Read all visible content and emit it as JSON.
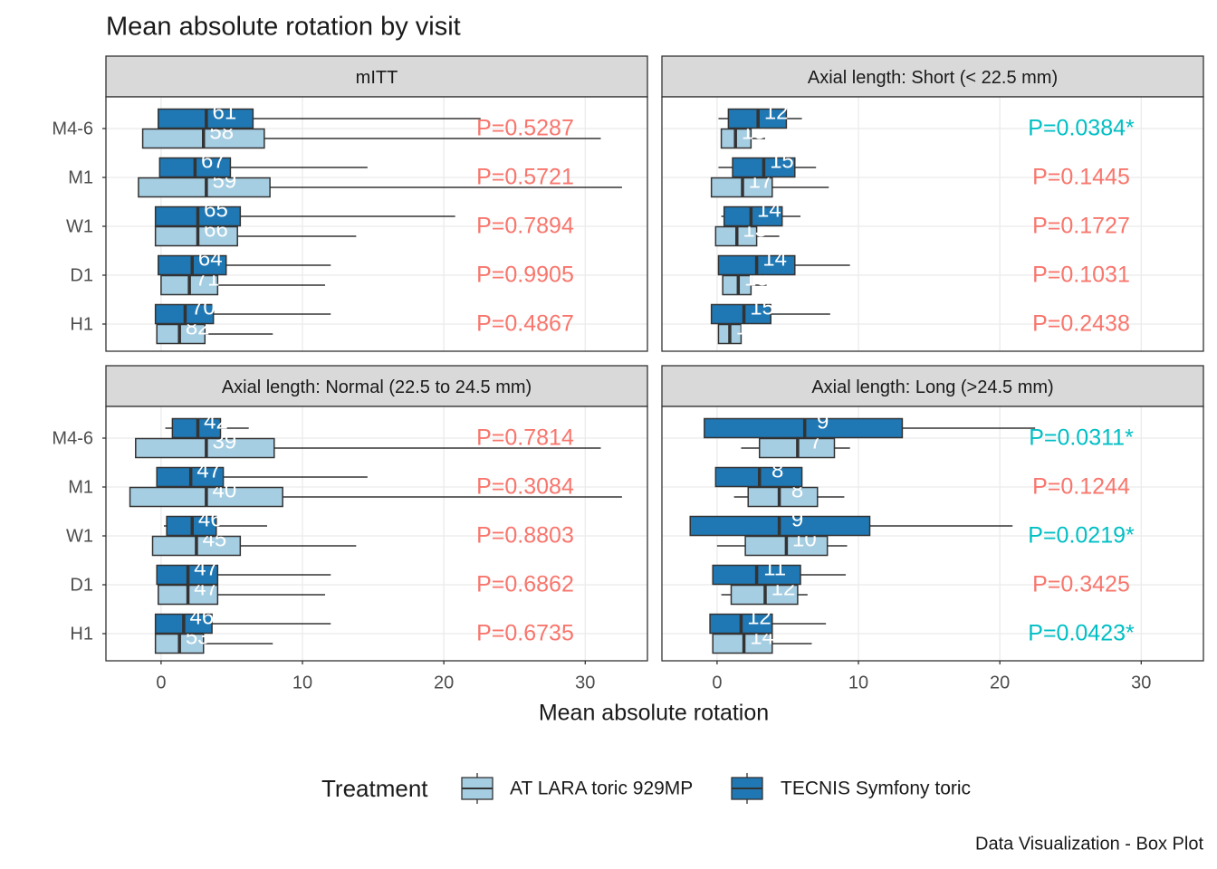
{
  "chart_data": {
    "type": "box",
    "title": "Mean absolute rotation by visit",
    "x_label": "Mean absolute rotation",
    "legend_title": "Treatment",
    "caption": "Data Visualization - Box Plot",
    "xlim": [
      -3.9,
      34.4
    ],
    "xticks": [
      0,
      10,
      20,
      30
    ],
    "grid": true,
    "categories": [
      "M4-6",
      "M1",
      "W1",
      "D1",
      "H1"
    ],
    "series": [
      {
        "name": "AT LARA toric 929MP",
        "color": "#a6cee3"
      },
      {
        "name": "TECNIS Symfony toric",
        "color": "#1f78b4"
      }
    ],
    "panels": [
      {
        "title": "mITT",
        "series": [
          {
            "stats": [
              [
                -1.3,
                -1.3,
                3.0,
                7.3,
                31.1
              ],
              [
                -1.6,
                -1.6,
                3.2,
                7.7,
                32.6
              ],
              [
                -0.4,
                -0.4,
                2.6,
                5.4,
                13.8
              ],
              [
                0,
                0,
                2.0,
                4.0,
                11.6
              ],
              [
                -0.3,
                -0.3,
                1.3,
                3.1,
                7.9
              ]
            ],
            "counts": [
              58,
              59,
              66,
              71,
              82
            ]
          },
          {
            "stats": [
              [
                -0.2,
                -0.2,
                3.2,
                6.5,
                22.6
              ],
              [
                -0.1,
                -0.1,
                2.4,
                4.9,
                14.6
              ],
              [
                -0.4,
                -0.4,
                2.6,
                5.6,
                20.8
              ],
              [
                -0.2,
                -0.2,
                2.2,
                4.6,
                12.0
              ],
              [
                -0.4,
                -0.4,
                1.7,
                3.7,
                12.0
              ]
            ],
            "counts": [
              61,
              67,
              65,
              64,
              70
            ]
          }
        ],
        "p_values": [
          "P=0.5287",
          "P=0.5721",
          "P=0.7894",
          "P=0.9905",
          "P=0.4867"
        ],
        "p_colors": [
          "#F8766D",
          "#F8766D",
          "#F8766D",
          "#F8766D",
          "#F8766D"
        ]
      },
      {
        "title": "Axial length: Short (< 22.5 mm)",
        "series": [
          {
            "stats": [
              [
                0.3,
                0.3,
                1.3,
                2.4,
                3.4
              ],
              [
                -0.4,
                -0.4,
                1.8,
                3.9,
                7.9
              ],
              [
                -0.1,
                -0.1,
                1.4,
                2.8,
                4.4
              ],
              [
                0.4,
                0.4,
                1.5,
                2.4,
                3.5
              ],
              [
                0.1,
                0.1,
                0.9,
                1.7,
                1.7
              ]
            ],
            "counts": [
              13,
              17,
              13,
              13,
              15
            ]
          },
          {
            "stats": [
              [
                0.1,
                0.8,
                2.9,
                4.9,
                6.0
              ],
              [
                0.1,
                1.1,
                3.3,
                5.5,
                7.0
              ],
              [
                0.3,
                0.5,
                2.4,
                4.6,
                5.9
              ],
              [
                0.1,
                0.1,
                2.8,
                5.5,
                9.4
              ],
              [
                -0.4,
                -0.4,
                1.9,
                3.8,
                8.0
              ]
            ],
            "counts": [
              12,
              15,
              14,
              14,
              15
            ]
          }
        ],
        "p_values": [
          "P=0.0384*",
          "P=0.1445",
          "P=0.1727",
          "P=0.1031",
          "P=0.2438"
        ],
        "p_colors": [
          "#00BFC4",
          "#F8766D",
          "#F8766D",
          "#F8766D",
          "#F8766D"
        ]
      },
      {
        "title": "Axial length: Normal (22.5 to 24.5 mm)",
        "series": [
          {
            "stats": [
              [
                -1.8,
                -1.8,
                3.2,
                8.0,
                31.1
              ],
              [
                -2.2,
                -2.2,
                3.2,
                8.6,
                32.6
              ],
              [
                -0.6,
                -0.6,
                2.5,
                5.6,
                13.8
              ],
              [
                -0.2,
                -0.2,
                1.9,
                4.0,
                11.6
              ],
              [
                -0.4,
                -0.4,
                1.3,
                3.0,
                7.9
              ]
            ],
            "counts": [
              39,
              40,
              45,
              47,
              53
            ]
          },
          {
            "stats": [
              [
                0.3,
                0.8,
                2.6,
                4.2,
                6.2
              ],
              [
                -0.3,
                -0.3,
                2.1,
                4.4,
                14.6
              ],
              [
                0.2,
                0.4,
                2.2,
                3.9,
                7.5
              ],
              [
                -0.3,
                -0.3,
                1.9,
                4.0,
                12.0
              ],
              [
                -0.4,
                -0.4,
                1.6,
                3.6,
                12.0
              ]
            ],
            "counts": [
              42,
              47,
              46,
              47,
              46
            ]
          }
        ],
        "p_values": [
          "P=0.7814",
          "P=0.3084",
          "P=0.8803",
          "P=0.6862",
          "P=0.6735"
        ],
        "p_colors": [
          "#F8766D",
          "#F8766D",
          "#F8766D",
          "#F8766D",
          "#F8766D"
        ]
      },
      {
        "title": "Axial length: Long (>24.5 mm)",
        "series": [
          {
            "stats": [
              [
                1.7,
                3.0,
                5.7,
                8.3,
                9.4
              ],
              [
                1.2,
                2.2,
                4.4,
                7.1,
                9.0
              ],
              [
                0,
                2.0,
                4.9,
                7.8,
                9.2
              ],
              [
                0.3,
                1.0,
                3.4,
                5.7,
                6.4
              ],
              [
                -0.3,
                -0.3,
                1.9,
                3.9,
                6.7
              ]
            ],
            "counts": [
              7,
              8,
              10,
              12,
              14
            ]
          },
          {
            "stats": [
              [
                -0.9,
                -0.9,
                6.2,
                13.1,
                22.5
              ],
              [
                -0.1,
                -0.1,
                3.0,
                6.0,
                6.0
              ],
              [
                -1.9,
                -1.9,
                4.4,
                10.8,
                20.9
              ],
              [
                -0.3,
                -0.3,
                2.8,
                5.9,
                9.1
              ],
              [
                -0.5,
                -0.5,
                1.7,
                3.9,
                7.7
              ]
            ],
            "counts": [
              9,
              8,
              9,
              11,
              12
            ]
          }
        ],
        "p_values": [
          "P=0.0311*",
          "P=0.1244",
          "P=0.0219*",
          "P=0.3425",
          "P=0.0423*"
        ],
        "p_colors": [
          "#00BFC4",
          "#F8766D",
          "#00BFC4",
          "#F8766D",
          "#00BFC4"
        ]
      }
    ]
  }
}
